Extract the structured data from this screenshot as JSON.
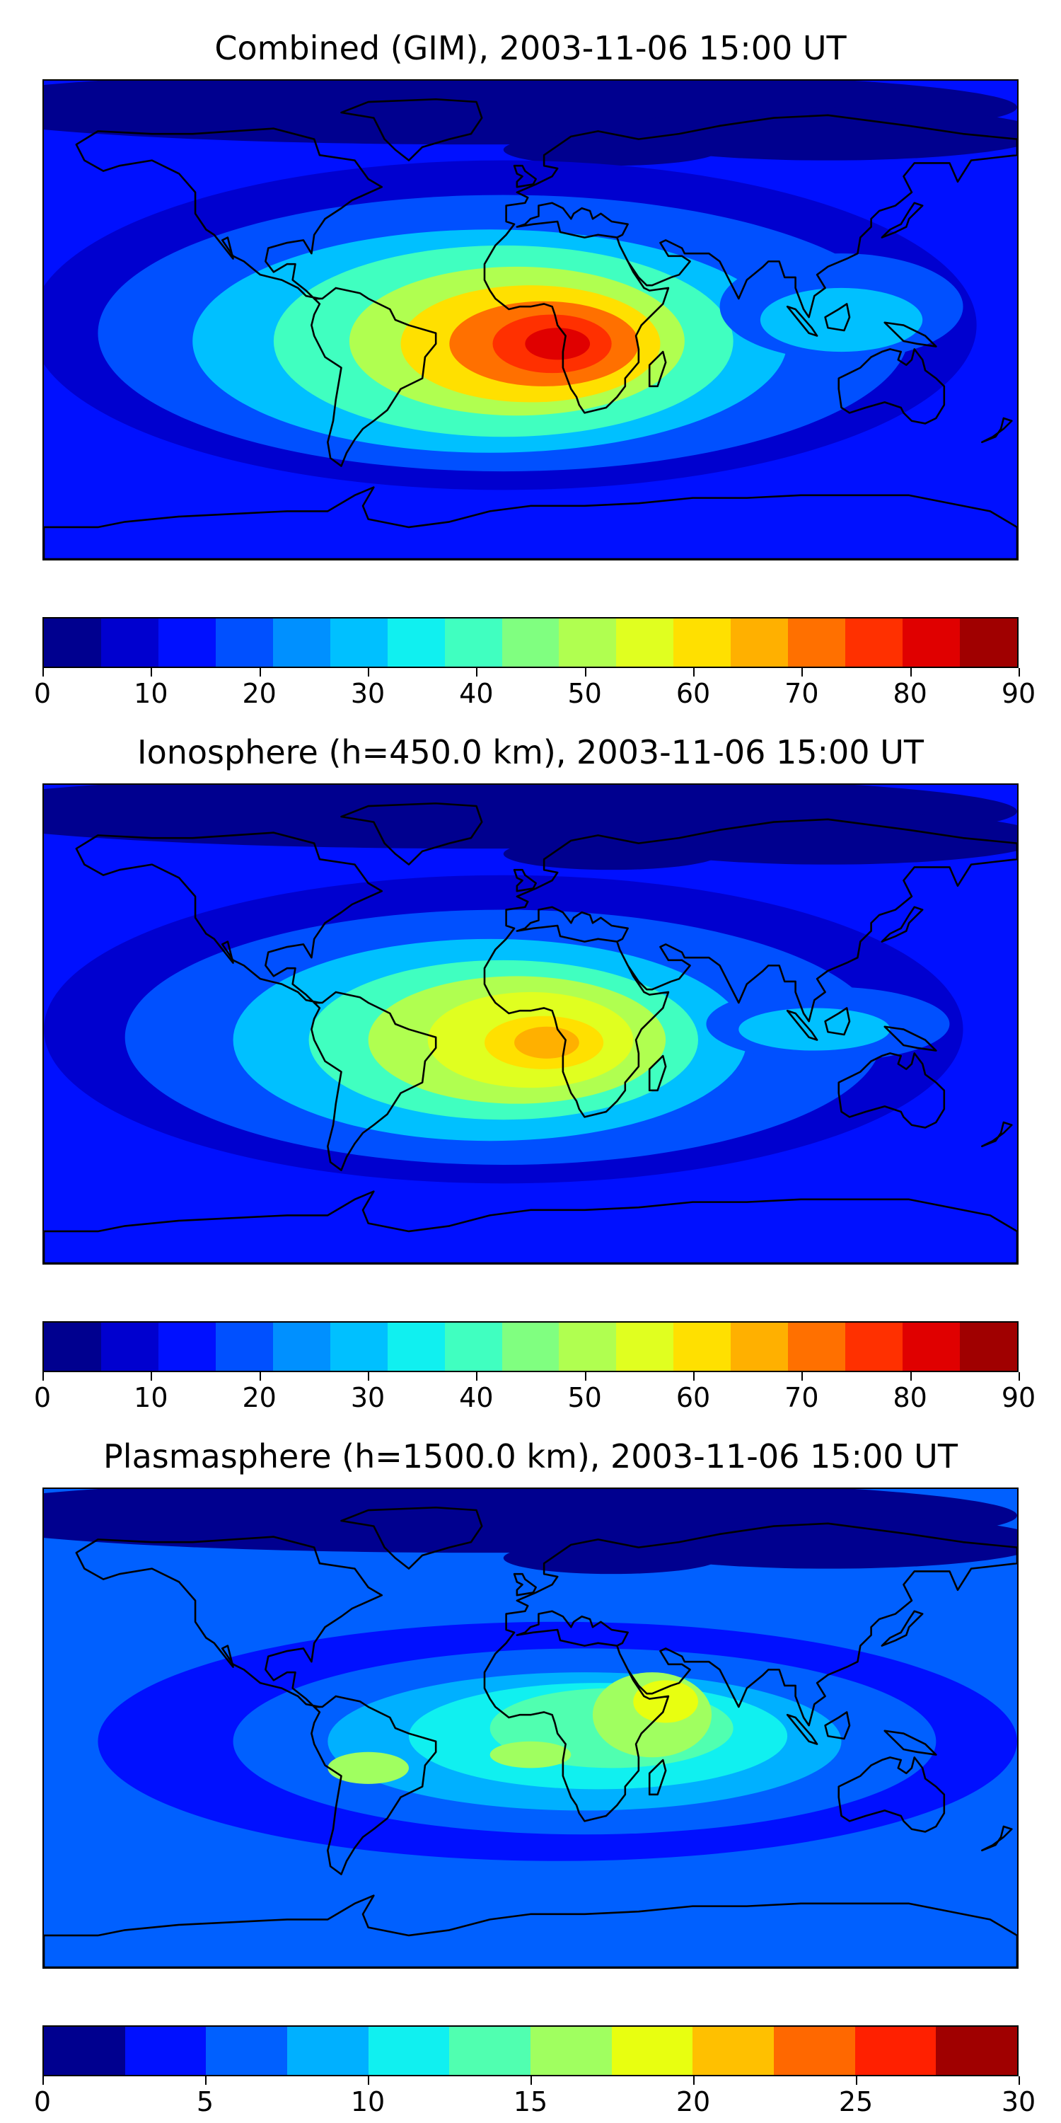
{
  "panels": [
    {
      "title": "Combined (GIM), 2003-11-06 15:00 UT",
      "colorbar": {
        "colors": [
          "#00008f",
          "#0000cf",
          "#0010ff",
          "#0050ff",
          "#0090ff",
          "#00c0ff",
          "#10f0f0",
          "#40ffc0",
          "#80ff80",
          "#b0ff50",
          "#e0ff20",
          "#ffe000",
          "#ffb000",
          "#ff7000",
          "#ff3000",
          "#e00000",
          "#a00000"
        ],
        "ticks": [
          "0",
          "10",
          "20",
          "30",
          "40",
          "50",
          "60",
          "70",
          "80",
          "90"
        ]
      },
      "map_scale": {
        "vmin": 0,
        "vmax": 90,
        "background": 10,
        "features": [
          {
            "name": "north-polar-low",
            "value": 5
          },
          {
            "name": "equatorial-anomaly",
            "value": 35
          },
          {
            "name": "tropical-crest",
            "value": 55
          },
          {
            "name": "atlantic-peak",
            "value": 85
          }
        ]
      }
    },
    {
      "title": "Ionosphere  (h=450.0 km), 2003-11-06 15:00 UT",
      "colorbar": {
        "colors": [
          "#00008f",
          "#0000cf",
          "#0010ff",
          "#0050ff",
          "#0090ff",
          "#00c0ff",
          "#10f0f0",
          "#40ffc0",
          "#80ff80",
          "#b0ff50",
          "#e0ff20",
          "#ffe000",
          "#ffb000",
          "#ff7000",
          "#ff3000",
          "#e00000",
          "#a00000"
        ],
        "ticks": [
          "0",
          "10",
          "20",
          "30",
          "40",
          "50",
          "60",
          "70",
          "80",
          "90"
        ]
      },
      "map_scale": {
        "vmin": 0,
        "vmax": 90,
        "background": 10,
        "features": [
          {
            "name": "north-polar-low",
            "value": 5
          },
          {
            "name": "equatorial-anomaly",
            "value": 30
          },
          {
            "name": "tropical-crest",
            "value": 50
          },
          {
            "name": "atlantic-peak",
            "value": 65
          }
        ]
      }
    },
    {
      "title": "Plasmasphere (h=1500.0 km), 2003-11-06 15:00 UT",
      "colorbar": {
        "colors": [
          "#00008f",
          "#0010ff",
          "#0060ff",
          "#00b0ff",
          "#10f0f0",
          "#50ffb0",
          "#a0ff60",
          "#e8ff10",
          "#ffc000",
          "#ff6800",
          "#ff2000",
          "#a00000"
        ],
        "ticks": [
          "0",
          "5",
          "10",
          "15",
          "20",
          "25",
          "30"
        ]
      },
      "map_scale": {
        "vmin": 0,
        "vmax": 30,
        "background": 4,
        "features": [
          {
            "name": "north-polar-low",
            "value": 2
          },
          {
            "name": "equatorial-anomaly",
            "value": 12
          },
          {
            "name": "tropical-crest",
            "value": 15
          },
          {
            "name": "indian-ocean-peak",
            "value": 20
          }
        ]
      }
    }
  ]
}
